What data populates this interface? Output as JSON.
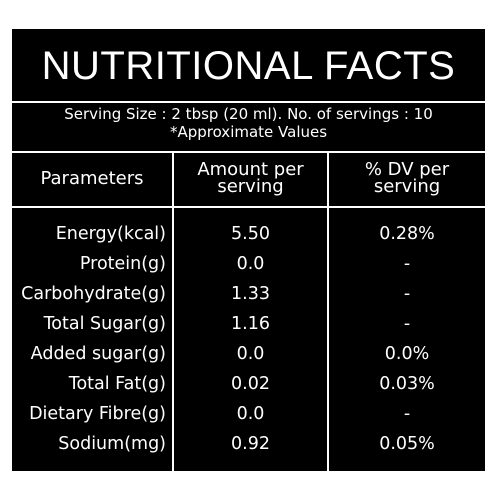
{
  "title": "NUTRITIONAL FACTS",
  "serving": {
    "line1": "Serving Size : 2 tbsp (20 ml). No. of servings : 10",
    "line2": "*Approximate Values"
  },
  "headers": {
    "parameters": "Parameters",
    "amount_line1": "Amount per",
    "amount_line2": "serving",
    "dv_line1": "% DV per",
    "dv_line2": "serving"
  },
  "rows": [
    {
      "parameter": "Energy(kcal)",
      "amount": "5.50",
      "dv": "0.28%"
    },
    {
      "parameter": "Protein(g)",
      "amount": "0.0",
      "dv": "-"
    },
    {
      "parameter": "Carbohydrate(g)",
      "amount": "1.33",
      "dv": "-"
    },
    {
      "parameter": "Total Sugar(g)",
      "amount": "1.16",
      "dv": "-"
    },
    {
      "parameter": "Added sugar(g)",
      "amount": "0.0",
      "dv": "0.0%"
    },
    {
      "parameter": "Total Fat(g)",
      "amount": "0.02",
      "dv": "0.03%"
    },
    {
      "parameter": "Dietary Fibre(g)",
      "amount": "0.0",
      "dv": "-"
    },
    {
      "parameter": "Sodium(mg)",
      "amount": "0.92",
      "dv": "0.05%"
    }
  ],
  "colors": {
    "background": "#000000",
    "text": "#ffffff",
    "border": "#ffffff"
  }
}
